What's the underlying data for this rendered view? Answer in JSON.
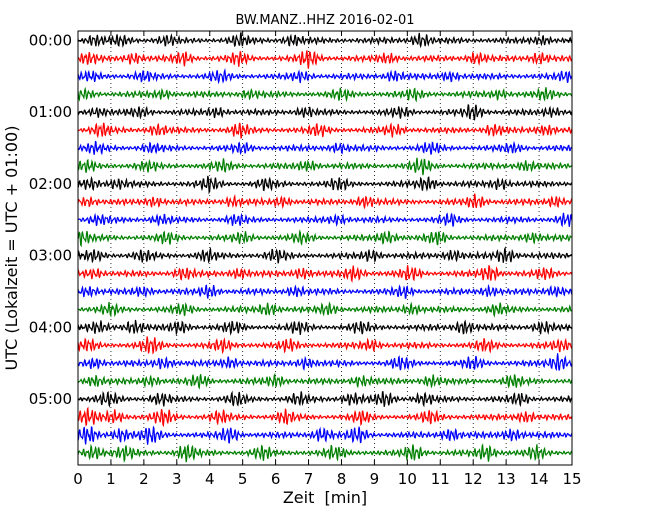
{
  "chart_data": {
    "type": "line",
    "title": "BW.MANZ..HHZ 2016-02-01",
    "xlabel": "Zeit  [min]",
    "ylabel": "UTC (Lokalzeit = UTC + 01:00)",
    "xlim": [
      0,
      15
    ],
    "x_ticks": [
      "0",
      "1",
      "2",
      "3",
      "4",
      "5",
      "6",
      "7",
      "8",
      "9",
      "10",
      "11",
      "12",
      "13",
      "14",
      "15"
    ],
    "y_ticks": [
      {
        "row": 0,
        "label": "00:00"
      },
      {
        "row": 4,
        "label": "01:00"
      },
      {
        "row": 8,
        "label": "02:00"
      },
      {
        "row": 12,
        "label": "03:00"
      },
      {
        "row": 16,
        "label": "04:00"
      },
      {
        "row": 20,
        "label": "05:00"
      }
    ],
    "row_count": 24,
    "row_minutes": 15,
    "row_colors": [
      "#000000",
      "#ff0000",
      "#0000ff",
      "#008000"
    ],
    "grid_vertical_dotted": true,
    "traces": [
      {
        "row": 0,
        "color": "#000000",
        "bursts": [
          [
            0.5,
            0.28
          ],
          [
            1.3,
            0.25
          ],
          [
            2.7,
            0.25
          ],
          [
            4.9,
            0.35
          ],
          [
            6.5,
            0.28
          ],
          [
            10.4,
            0.4
          ],
          [
            14.1,
            0.25
          ]
        ]
      },
      {
        "row": 1,
        "color": "#ff0000",
        "bursts": [
          [
            0.3,
            0.3
          ],
          [
            1.7,
            0.3
          ],
          [
            3.2,
            0.35
          ],
          [
            4.9,
            0.35
          ],
          [
            7.0,
            0.5
          ],
          [
            9.4,
            0.3
          ],
          [
            12.1,
            0.3
          ],
          [
            14.0,
            0.3
          ]
        ]
      },
      {
        "row": 2,
        "color": "#0000ff",
        "bursts": [
          [
            0.4,
            0.2
          ],
          [
            2.0,
            0.25
          ],
          [
            4.3,
            0.28
          ],
          [
            6.8,
            0.25
          ],
          [
            9.6,
            0.3
          ],
          [
            11.3,
            0.28
          ],
          [
            14.9,
            0.3
          ]
        ]
      },
      {
        "row": 3,
        "color": "#008000",
        "bursts": [
          [
            0.2,
            0.22
          ],
          [
            2.6,
            0.22
          ],
          [
            5.2,
            0.22
          ],
          [
            8.0,
            0.25
          ],
          [
            10.2,
            0.25
          ],
          [
            12.8,
            0.22
          ],
          [
            14.2,
            0.25
          ]
        ]
      },
      {
        "row": 4,
        "color": "#000000",
        "bursts": [
          [
            0.6,
            0.25
          ],
          [
            1.9,
            0.25
          ],
          [
            4.2,
            0.25
          ],
          [
            6.9,
            0.25
          ],
          [
            9.8,
            0.25
          ],
          [
            12.0,
            0.4
          ],
          [
            14.4,
            0.25
          ]
        ]
      },
      {
        "row": 5,
        "color": "#ff0000",
        "bursts": [
          [
            0.7,
            0.35
          ],
          [
            2.4,
            0.3
          ],
          [
            4.9,
            0.35
          ],
          [
            7.3,
            0.3
          ],
          [
            9.6,
            0.3
          ],
          [
            12.6,
            0.3
          ],
          [
            14.2,
            0.3
          ]
        ]
      },
      {
        "row": 6,
        "color": "#0000ff",
        "bursts": [
          [
            0.5,
            0.25
          ],
          [
            2.2,
            0.25
          ],
          [
            5.0,
            0.25
          ],
          [
            7.9,
            0.25
          ],
          [
            10.7,
            0.25
          ],
          [
            13.2,
            0.25
          ]
        ]
      },
      {
        "row": 7,
        "color": "#008000",
        "bursts": [
          [
            0.3,
            0.25
          ],
          [
            2.1,
            0.25
          ],
          [
            4.4,
            0.28
          ],
          [
            7.0,
            0.3
          ],
          [
            10.4,
            0.4
          ],
          [
            13.6,
            0.3
          ]
        ]
      },
      {
        "row": 8,
        "color": "#000000",
        "bursts": [
          [
            0.4,
            0.3
          ],
          [
            1.2,
            0.25
          ],
          [
            4.0,
            0.4
          ],
          [
            5.7,
            0.3
          ],
          [
            7.9,
            0.3
          ],
          [
            10.6,
            0.4
          ],
          [
            12.8,
            0.3
          ]
        ]
      },
      {
        "row": 9,
        "color": "#ff0000",
        "bursts": [
          [
            0.3,
            0.25
          ],
          [
            2.3,
            0.25
          ],
          [
            4.7,
            0.25
          ],
          [
            6.2,
            0.25
          ],
          [
            8.7,
            0.3
          ],
          [
            12.1,
            0.4
          ],
          [
            14.5,
            0.3
          ]
        ]
      },
      {
        "row": 10,
        "color": "#0000ff",
        "bursts": [
          [
            0.6,
            0.25
          ],
          [
            2.5,
            0.25
          ],
          [
            4.8,
            0.25
          ],
          [
            7.9,
            0.25
          ],
          [
            11.3,
            0.28
          ],
          [
            14.8,
            0.3
          ]
        ]
      },
      {
        "row": 11,
        "color": "#008000",
        "bursts": [
          [
            0.1,
            0.4
          ],
          [
            2.7,
            0.28
          ],
          [
            5.0,
            0.28
          ],
          [
            6.8,
            0.28
          ],
          [
            9.4,
            0.35
          ],
          [
            10.9,
            0.35
          ],
          [
            13.8,
            0.3
          ]
        ]
      },
      {
        "row": 12,
        "color": "#000000",
        "bursts": [
          [
            0.5,
            0.28
          ],
          [
            2.0,
            0.28
          ],
          [
            3.9,
            0.3
          ],
          [
            6.0,
            0.3
          ],
          [
            8.9,
            0.3
          ],
          [
            11.4,
            0.3
          ],
          [
            13.0,
            0.45
          ]
        ]
      },
      {
        "row": 13,
        "color": "#ff0000",
        "bursts": [
          [
            0.5,
            0.28
          ],
          [
            3.2,
            0.35
          ],
          [
            4.9,
            0.3
          ],
          [
            6.8,
            0.3
          ],
          [
            8.4,
            0.4
          ],
          [
            10.1,
            0.35
          ],
          [
            12.5,
            0.45
          ],
          [
            14.2,
            0.3
          ]
        ]
      },
      {
        "row": 14,
        "color": "#0000ff",
        "bursts": [
          [
            0.3,
            0.3
          ],
          [
            2.0,
            0.25
          ],
          [
            4.0,
            0.35
          ],
          [
            6.6,
            0.28
          ],
          [
            9.9,
            0.3
          ],
          [
            12.5,
            0.28
          ],
          [
            14.5,
            0.28
          ]
        ]
      },
      {
        "row": 15,
        "color": "#008000",
        "bursts": [
          [
            1.0,
            0.28
          ],
          [
            3.2,
            0.28
          ],
          [
            5.8,
            0.35
          ],
          [
            7.6,
            0.3
          ],
          [
            10.1,
            0.28
          ],
          [
            12.7,
            0.28
          ]
        ]
      },
      {
        "row": 16,
        "color": "#000000",
        "bursts": [
          [
            0.6,
            0.25
          ],
          [
            1.7,
            0.38
          ],
          [
            3.1,
            0.3
          ],
          [
            4.7,
            0.3
          ],
          [
            6.7,
            0.3
          ],
          [
            8.6,
            0.3
          ],
          [
            11.7,
            0.4
          ],
          [
            14.1,
            0.3
          ]
        ]
      },
      {
        "row": 17,
        "color": "#ff0000",
        "bursts": [
          [
            0.3,
            0.3
          ],
          [
            2.2,
            0.45
          ],
          [
            4.4,
            0.3
          ],
          [
            6.4,
            0.3
          ],
          [
            8.9,
            0.3
          ],
          [
            12.4,
            0.3
          ],
          [
            14.7,
            0.3
          ]
        ]
      },
      {
        "row": 18,
        "color": "#0000ff",
        "bursts": [
          [
            0.5,
            0.3
          ],
          [
            2.6,
            0.3
          ],
          [
            4.6,
            0.3
          ],
          [
            6.9,
            0.3
          ],
          [
            9.8,
            0.3
          ],
          [
            12.0,
            0.3
          ],
          [
            14.6,
            0.5
          ]
        ]
      },
      {
        "row": 19,
        "color": "#008000",
        "bursts": [
          [
            0.5,
            0.3
          ],
          [
            2.2,
            0.3
          ],
          [
            3.7,
            0.35
          ],
          [
            6.0,
            0.3
          ],
          [
            8.6,
            0.3
          ],
          [
            10.7,
            0.3
          ],
          [
            13.2,
            0.3
          ]
        ]
      },
      {
        "row": 20,
        "color": "#000000",
        "bursts": [
          [
            0.9,
            0.35
          ],
          [
            2.5,
            0.3
          ],
          [
            4.8,
            0.35
          ],
          [
            6.7,
            0.3
          ],
          [
            8.3,
            0.35
          ],
          [
            9.3,
            0.38
          ],
          [
            10.5,
            0.3
          ],
          [
            13.4,
            0.3
          ]
        ]
      },
      {
        "row": 21,
        "color": "#ff0000",
        "bursts": [
          [
            0.3,
            0.45
          ],
          [
            1.1,
            0.35
          ],
          [
            2.6,
            0.4
          ],
          [
            4.3,
            0.3
          ],
          [
            6.3,
            0.35
          ],
          [
            8.6,
            0.35
          ],
          [
            10.7,
            0.35
          ],
          [
            13.6,
            0.3
          ]
        ]
      },
      {
        "row": 22,
        "color": "#0000ff",
        "bursts": [
          [
            0.3,
            0.45
          ],
          [
            1.3,
            0.38
          ],
          [
            2.2,
            0.5
          ],
          [
            4.6,
            0.45
          ],
          [
            7.4,
            0.4
          ],
          [
            8.5,
            0.45
          ],
          [
            11.3,
            0.35
          ],
          [
            13.2,
            0.35
          ]
        ]
      },
      {
        "row": 23,
        "color": "#008000",
        "bursts": [
          [
            0.5,
            0.4
          ],
          [
            1.4,
            0.35
          ],
          [
            3.3,
            0.45
          ],
          [
            5.6,
            0.35
          ],
          [
            7.8,
            0.35
          ],
          [
            10.2,
            0.45
          ],
          [
            12.4,
            0.45
          ],
          [
            13.9,
            0.35
          ]
        ]
      }
    ]
  }
}
